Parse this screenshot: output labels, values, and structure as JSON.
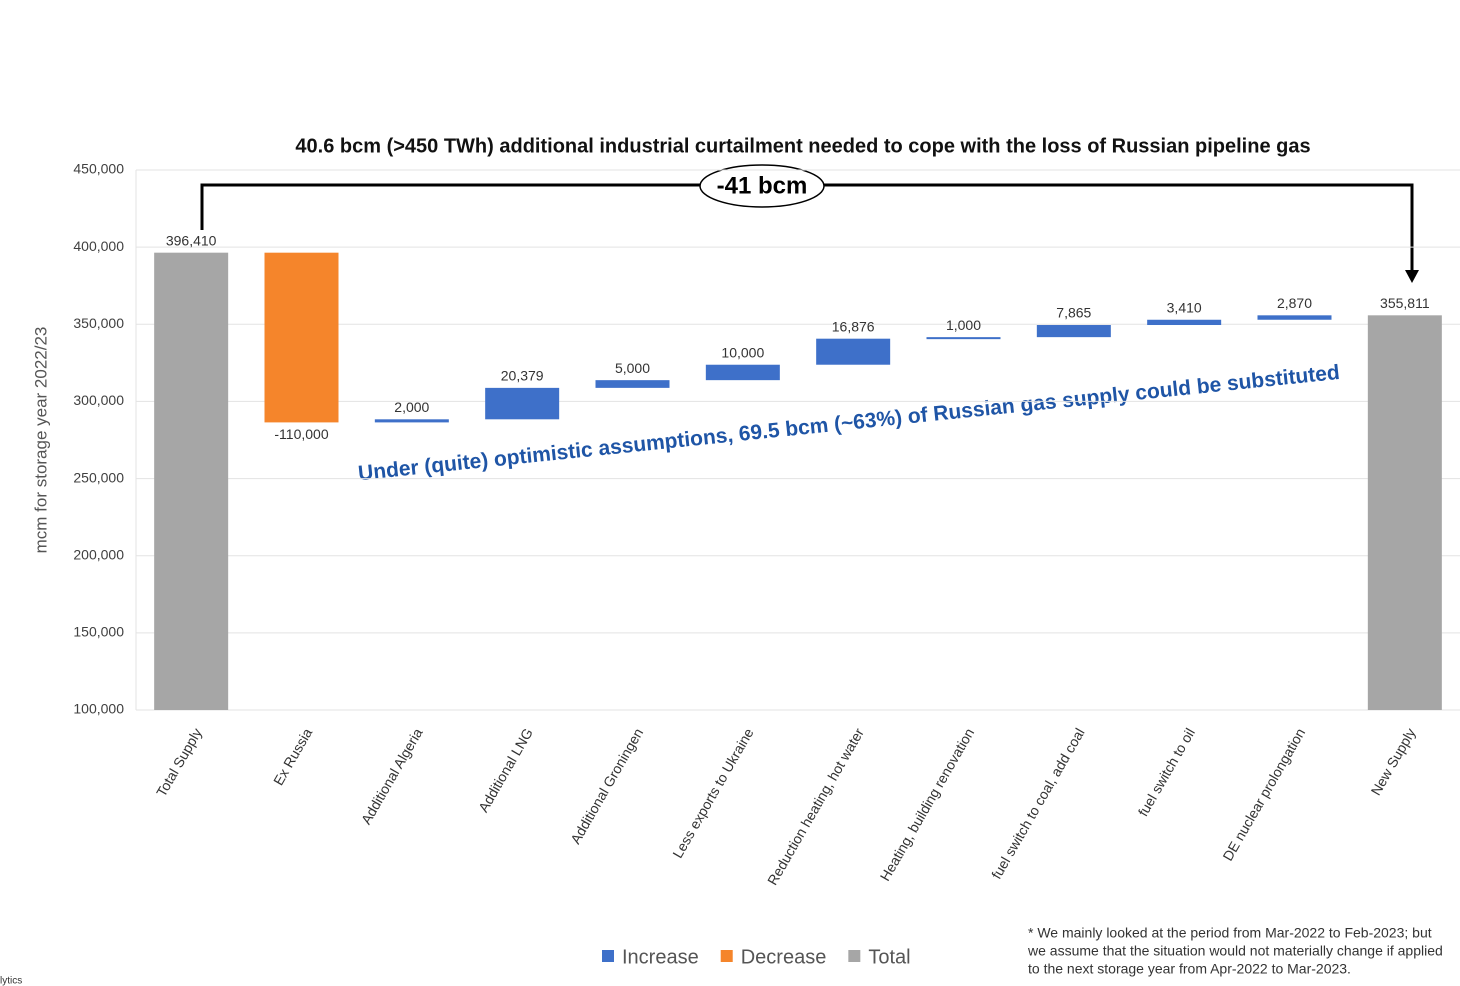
{
  "chart_data": {
    "type": "waterfall",
    "title": "40.6 bcm (>450 TWh) additional industrial curtailment needed to cope with the loss of Russian pipeline gas",
    "y_label": "mcm for storage year 2022/23",
    "categories": [
      "Total Supply",
      "Ex Russia",
      "Additional Algeria",
      "Additional LNG",
      "Additional Groningen",
      "Less exports to Ukraine",
      "Reduction heating, hot water",
      "Heating, building renovation",
      "fuel switch to coal, add coal",
      "fuel switch to oil",
      "DE nuclear prolongation",
      "New Supply"
    ],
    "values": [
      396410,
      -110000,
      2000,
      20379,
      5000,
      10000,
      16876,
      1000,
      7865,
      3410,
      2870,
      355811
    ],
    "value_labels": [
      "396,410",
      "-110,000",
      "2,000",
      "20,379",
      "5,000",
      "10,000",
      "16,876",
      "1,000",
      "7,865",
      "3,410",
      "2,870",
      "355,811"
    ],
    "bar_legend": [
      2,
      1,
      0,
      0,
      0,
      0,
      0,
      0,
      0,
      0,
      0,
      2
    ],
    "legend": [
      {
        "name": "Increase",
        "color": "#3e70c9"
      },
      {
        "name": "Decrease",
        "color": "#f5852b"
      },
      {
        "name": "Total",
        "color": "#a6a6a6"
      }
    ],
    "ylim": [
      100000,
      450000
    ],
    "yticks": [
      {
        "value": 100000,
        "label": "100,000"
      },
      {
        "value": 150000,
        "label": "150,000"
      },
      {
        "value": 200000,
        "label": "200,000"
      },
      {
        "value": 250000,
        "label": "250,000"
      },
      {
        "value": 300000,
        "label": "300,000"
      },
      {
        "value": 350000,
        "label": "350,000"
      },
      {
        "value": 400000,
        "label": "400,000"
      },
      {
        "value": 450000,
        "label": "450,000"
      }
    ],
    "grid": true,
    "bracket_label": "-41 bcm",
    "annotation": "Under (quite) optimistic assumptions, 69.5 bcm (~63%) of Russian gas supply could be substituted",
    "footnote": [
      "* We mainly looked at the period from Mar-2022 to Feb-2023; but",
      "we assume that the situation would not materially change if applied",
      "to the next storage year from Apr-2022 to Mar-2023."
    ],
    "watermark": "lytics"
  }
}
